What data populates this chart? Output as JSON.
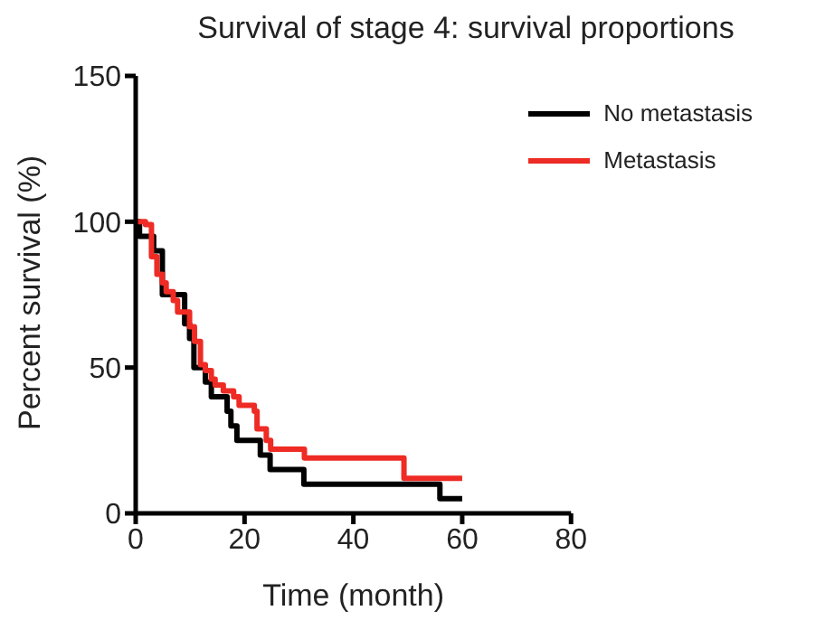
{
  "chart_data": {
    "type": "step",
    "title": "Survival of stage 4: survival proportions",
    "xlabel": "Time (month)",
    "ylabel": "Percent survival (%)",
    "xlim": [
      0,
      80
    ],
    "xticks": [
      0,
      20,
      40,
      60,
      80
    ],
    "ylim": [
      0,
      150
    ],
    "yticks": [
      0,
      50,
      100,
      150
    ],
    "legend": "top right",
    "series": [
      {
        "name": "No metastasis",
        "color": "#000000",
        "x": [
          0,
          0.7,
          3.3,
          4.9,
          9,
          9.9,
          10.7,
          12.8,
          13.9,
          16.8,
          17.5,
          18.6,
          22.9,
          24.7,
          30.9,
          55.9,
          60
        ],
        "values": [
          100,
          95,
          90,
          75,
          65,
          60,
          50,
          45,
          40,
          35,
          30,
          25,
          20,
          15,
          10,
          5,
          5
        ]
      },
      {
        "name": "Metastasis",
        "color": "#ee2b24",
        "x": [
          0,
          1.8,
          2.9,
          3.9,
          4.9,
          5.6,
          6.9,
          7.7,
          9.9,
          10.8,
          11.9,
          12.8,
          13.9,
          14.6,
          16.1,
          18,
          19,
          21.8,
          22.3,
          24,
          24.8,
          31,
          49.3,
          60
        ],
        "values": [
          100,
          99,
          88,
          82,
          79,
          76,
          73,
          69,
          64,
          59,
          51,
          49,
          46,
          44,
          42,
          40,
          37,
          35,
          29,
          25,
          22,
          19,
          12,
          12
        ]
      }
    ]
  }
}
